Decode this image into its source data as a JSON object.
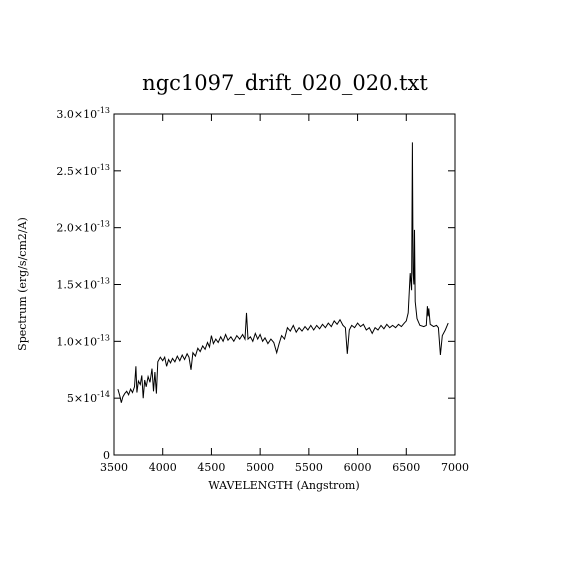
{
  "chart_data": {
    "type": "line",
    "title": "ngc1097_drift_020_020.txt",
    "xlabel": "WAVELENGTH (Angstrom)",
    "ylabel": "Spectrum (erg/s/cm2/A)",
    "xlim": [
      3500,
      7000
    ],
    "ylim": [
      0,
      3e-13
    ],
    "x_ticks": [
      3500,
      4000,
      4500,
      5000,
      5500,
      6000,
      6500,
      7000
    ],
    "x_tick_labels": [
      "3500",
      "4000",
      "4500",
      "5000",
      "5500",
      "6000",
      "6500",
      "7000"
    ],
    "y_ticks": [
      0,
      5e-14,
      1e-13,
      1.5e-13,
      2e-13,
      2.5e-13,
      3e-13
    ],
    "y_tick_labels": [
      {
        "mant": "0",
        "exp": ""
      },
      {
        "mant": "5×10",
        "exp": "-14"
      },
      {
        "mant": "1.0×10",
        "exp": "-13"
      },
      {
        "mant": "1.5×10",
        "exp": "-13"
      },
      {
        "mant": "2.0×10",
        "exp": "-13"
      },
      {
        "mant": "2.5×10",
        "exp": "-13"
      },
      {
        "mant": "3.0×10",
        "exp": "-13"
      }
    ],
    "grid": false,
    "series": [
      {
        "color": "#000000",
        "points": [
          [
            3540,
            5.8e-14
          ],
          [
            3560,
            5.2e-14
          ],
          [
            3575,
            4.6e-14
          ],
          [
            3590,
            5.1e-14
          ],
          [
            3610,
            5.4e-14
          ],
          [
            3630,
            5.6e-14
          ],
          [
            3650,
            5.3e-14
          ],
          [
            3670,
            5.8e-14
          ],
          [
            3690,
            5.5e-14
          ],
          [
            3710,
            6e-14
          ],
          [
            3725,
            7.8e-14
          ],
          [
            3735,
            5.5e-14
          ],
          [
            3750,
            6.5e-14
          ],
          [
            3770,
            6.2e-14
          ],
          [
            3785,
            7e-14
          ],
          [
            3800,
            5e-14
          ],
          [
            3815,
            6.6e-14
          ],
          [
            3830,
            6e-14
          ],
          [
            3850,
            6.9e-14
          ],
          [
            3870,
            6.4e-14
          ],
          [
            3890,
            7.6e-14
          ],
          [
            3905,
            5.6e-14
          ],
          [
            3920,
            7.3e-14
          ],
          [
            3935,
            5.4e-14
          ],
          [
            3950,
            8.2e-14
          ],
          [
            3975,
            8.6e-14
          ],
          [
            4000,
            8.3e-14
          ],
          [
            4020,
            8.6e-14
          ],
          [
            4040,
            7.8e-14
          ],
          [
            4060,
            8.4e-14
          ],
          [
            4080,
            8.1e-14
          ],
          [
            4100,
            8.5e-14
          ],
          [
            4125,
            8.2e-14
          ],
          [
            4150,
            8.7e-14
          ],
          [
            4175,
            8.3e-14
          ],
          [
            4200,
            8.8e-14
          ],
          [
            4225,
            8.4e-14
          ],
          [
            4250,
            8.9e-14
          ],
          [
            4270,
            8.6e-14
          ],
          [
            4290,
            7.5e-14
          ],
          [
            4310,
            9e-14
          ],
          [
            4335,
            8.7e-14
          ],
          [
            4360,
            9.4e-14
          ],
          [
            4385,
            9.1e-14
          ],
          [
            4410,
            9.6e-14
          ],
          [
            4435,
            9.3e-14
          ],
          [
            4460,
            9.9e-14
          ],
          [
            4480,
            9.5e-14
          ],
          [
            4500,
            1.05e-13
          ],
          [
            4520,
            9.8e-14
          ],
          [
            4545,
            1.02e-13
          ],
          [
            4570,
            9.9e-14
          ],
          [
            4595,
            1.04e-13
          ],
          [
            4620,
            1e-13
          ],
          [
            4645,
            1.06e-13
          ],
          [
            4670,
            1.01e-13
          ],
          [
            4700,
            1.04e-13
          ],
          [
            4730,
            1e-13
          ],
          [
            4760,
            1.05e-13
          ],
          [
            4790,
            1.02e-13
          ],
          [
            4820,
            1.06e-13
          ],
          [
            4845,
            1.02e-13
          ],
          [
            4860,
            1.25e-13
          ],
          [
            4875,
            1.02e-13
          ],
          [
            4900,
            1.04e-13
          ],
          [
            4925,
            1e-13
          ],
          [
            4950,
            1.07e-13
          ],
          [
            4975,
            1.02e-13
          ],
          [
            5000,
            1.06e-13
          ],
          [
            5025,
            1e-13
          ],
          [
            5050,
            1.03e-13
          ],
          [
            5080,
            9.8e-14
          ],
          [
            5110,
            1.02e-13
          ],
          [
            5140,
            9.9e-14
          ],
          [
            5170,
            9e-14
          ],
          [
            5195,
            9.8e-14
          ],
          [
            5220,
            1.05e-13
          ],
          [
            5250,
            1.02e-13
          ],
          [
            5280,
            1.12e-13
          ],
          [
            5310,
            1.09e-13
          ],
          [
            5340,
            1.14e-13
          ],
          [
            5370,
            1.08e-13
          ],
          [
            5400,
            1.12e-13
          ],
          [
            5430,
            1.09e-13
          ],
          [
            5460,
            1.13e-13
          ],
          [
            5490,
            1.1e-13
          ],
          [
            5520,
            1.14e-13
          ],
          [
            5550,
            1.1e-13
          ],
          [
            5580,
            1.14e-13
          ],
          [
            5610,
            1.11e-13
          ],
          [
            5640,
            1.15e-13
          ],
          [
            5670,
            1.12e-13
          ],
          [
            5700,
            1.16e-13
          ],
          [
            5730,
            1.13e-13
          ],
          [
            5760,
            1.18e-13
          ],
          [
            5790,
            1.15e-13
          ],
          [
            5820,
            1.19e-13
          ],
          [
            5850,
            1.14e-13
          ],
          [
            5875,
            1.12e-13
          ],
          [
            5895,
            8.9e-14
          ],
          [
            5915,
            1.1e-13
          ],
          [
            5940,
            1.14e-13
          ],
          [
            5970,
            1.12e-13
          ],
          [
            6000,
            1.16e-13
          ],
          [
            6030,
            1.13e-13
          ],
          [
            6060,
            1.15e-13
          ],
          [
            6090,
            1.1e-13
          ],
          [
            6120,
            1.12e-13
          ],
          [
            6150,
            1.07e-13
          ],
          [
            6180,
            1.12e-13
          ],
          [
            6210,
            1.1e-13
          ],
          [
            6240,
            1.14e-13
          ],
          [
            6270,
            1.11e-13
          ],
          [
            6300,
            1.15e-13
          ],
          [
            6330,
            1.12e-13
          ],
          [
            6360,
            1.14e-13
          ],
          [
            6390,
            1.12e-13
          ],
          [
            6420,
            1.15e-13
          ],
          [
            6450,
            1.13e-13
          ],
          [
            6480,
            1.16e-13
          ],
          [
            6500,
            1.18e-13
          ],
          [
            6520,
            1.25e-13
          ],
          [
            6540,
            1.6e-13
          ],
          [
            6555,
            1.45e-13
          ],
          [
            6563,
            2.75e-13
          ],
          [
            6570,
            1.6e-13
          ],
          [
            6578,
            1.5e-13
          ],
          [
            6584,
            1.98e-13
          ],
          [
            6592,
            1.35e-13
          ],
          [
            6610,
            1.2e-13
          ],
          [
            6640,
            1.14e-13
          ],
          [
            6680,
            1.13e-13
          ],
          [
            6705,
            1.14e-13
          ],
          [
            6717,
            1.31e-13
          ],
          [
            6724,
            1.22e-13
          ],
          [
            6731,
            1.29e-13
          ],
          [
            6745,
            1.15e-13
          ],
          [
            6780,
            1.13e-13
          ],
          [
            6810,
            1.14e-13
          ],
          [
            6830,
            1.12e-13
          ],
          [
            6850,
            8.8e-14
          ],
          [
            6870,
            1.05e-13
          ],
          [
            6900,
            1.1e-13
          ],
          [
            6930,
            1.16e-13
          ]
        ]
      }
    ]
  }
}
